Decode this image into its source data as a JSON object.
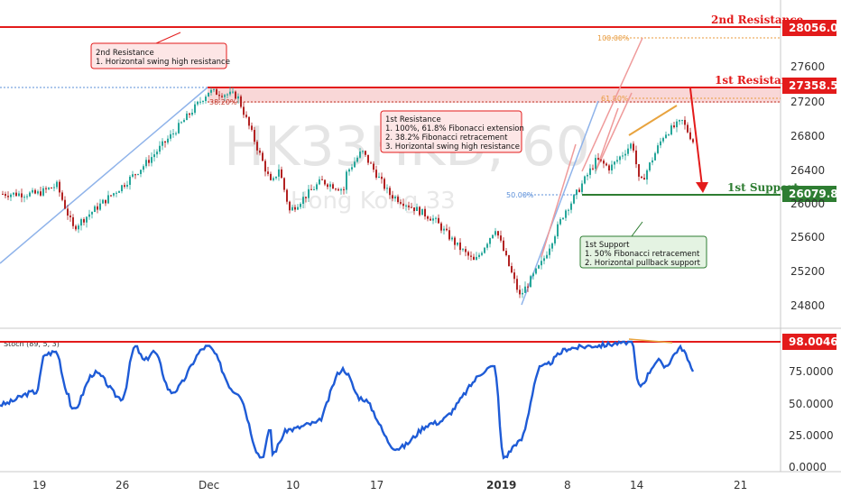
{
  "watermark": {
    "symbol": "HK33HKD, 60",
    "name": "Hong Kong 33"
  },
  "colors": {
    "up": "#26a69a",
    "down": "#b22222",
    "resistance": "#e31b1b",
    "support": "#2e7d32",
    "stoch": "#1e5bd6",
    "zone": "#f7c9c9"
  },
  "annotations": {
    "res2_title": "2nd Resistance",
    "res1_title": "1st Resistance",
    "sup1_title": "1st Support",
    "res2_box": [
      "2nd Resistance",
      "1. Horizontal swing high resistance"
    ],
    "res1_box": [
      "1st Resistance",
      "1. 100%, 61.8% Fibonacci extension",
      "2. 38.2% Fibonacci retracement",
      "3. Horizontal swing high resistance"
    ],
    "sup1_box": [
      "1st Support",
      "1. 50% Fibonacci retracement",
      "2. Horizontal pullback support"
    ],
    "fib_100": "100.00%",
    "fib_618": "61.80%",
    "fib_50": "50.00%",
    "fib_382": "38.20%"
  },
  "chart_data": [
    {
      "type": "line",
      "title": "HK33HKD, 60",
      "y_ticks": [
        24800,
        25200,
        25600,
        26000,
        26400,
        26800,
        27200,
        27600
      ],
      "ylim": [
        24560,
        28160
      ],
      "x_tick_labels": [
        "19",
        "26",
        "Dec",
        "10",
        "17",
        "2019",
        "8",
        "14",
        "21"
      ],
      "levels": [
        {
          "name": "2nd Resistance",
          "value": 28056.0,
          "label": "28056.0"
        },
        {
          "name": "1st Resistance",
          "value": 27358.5,
          "label": "27358.5"
        },
        {
          "name": "1st Support",
          "value": 26079.8,
          "label": "26079.8"
        }
      ],
      "series": [
        {
          "path": [
            [
              "19",
              26100
            ],
            [
              "21",
              26200
            ],
            [
              "23",
              25700
            ],
            [
              "26",
              26200
            ],
            [
              "28",
              26450
            ],
            [
              "30",
              26800
            ],
            [
              "Dec",
              27300
            ],
            [
              "Dec 3",
              27250
            ],
            [
              "Dec 5",
              26200
            ],
            [
              "Dec 7",
              26400
            ],
            [
              "10",
              25900
            ],
            [
              "Dec 12",
              26250
            ],
            [
              "Dec 14",
              26150
            ],
            [
              "17",
              26300
            ],
            [
              "Dec 18",
              26600
            ],
            [
              "Dec 21",
              26100
            ],
            [
              "Dec 24",
              25800
            ],
            [
              "Dec 27",
              25500
            ],
            [
              "Dec 28",
              25300
            ],
            [
              "2019",
              25700
            ],
            [
              "Jan 3",
              24900
            ],
            [
              "Jan 4",
              25300
            ],
            [
              "Jan 7",
              25900
            ],
            [
              "8",
              26000
            ],
            [
              "Jan 10",
              26500
            ],
            [
              "Jan 11",
              26400
            ],
            [
              "14",
              26700
            ],
            [
              "Jan 15",
              26200
            ],
            [
              "Jan 17",
              26800
            ],
            [
              "Jan 18",
              26950
            ],
            [
              "Jan 19",
              26700
            ]
          ]
        }
      ]
    },
    {
      "type": "line",
      "title": "Stoch (89, 5, 3)",
      "y_ticks": [
        0.0,
        25.0,
        50.0,
        75.0,
        100.0
      ],
      "y_tick_labels": [
        "0.0000",
        "25.0000",
        "50.0000",
        "75.0000"
      ],
      "ylim": [
        0,
        100
      ],
      "highlight": {
        "value": 98.0046,
        "label": "98.0046"
      },
      "series": [
        {
          "name": "Stoch (89, 5, 3)",
          "path": [
            [
              "19",
              60
            ],
            [
              "20",
              90
            ],
            [
              "21",
              92
            ],
            [
              "22",
              60
            ],
            [
              "23",
              45
            ],
            [
              "25",
              75
            ],
            [
              "26",
              55
            ],
            [
              "27",
              96
            ],
            [
              "28",
              85
            ],
            [
              "29",
              92
            ],
            [
              "30",
              60
            ],
            [
              "Dec",
              96
            ],
            [
              "Dec 3",
              60
            ],
            [
              "Dec 4",
              8
            ],
            [
              "Dec 5",
              30
            ],
            [
              "10",
              30
            ],
            [
              "Dec 11",
              10
            ],
            [
              "Dec 13",
              35
            ],
            [
              "17",
              78
            ],
            [
              "Dec 18",
              55
            ],
            [
              "Dec 20",
              15
            ],
            [
              "Dec 24",
              35
            ],
            [
              "2019",
              80
            ],
            [
              "Jan 2",
              8
            ],
            [
              "Jan 3",
              20
            ],
            [
              "Jan 4",
              80
            ],
            [
              "8",
              95
            ],
            [
              "Jan 10",
              97
            ],
            [
              "14",
              100
            ],
            [
              "Jan 15",
              65
            ],
            [
              "Jan 16",
              85
            ],
            [
              "Jan 17",
              80
            ],
            [
              "Jan 18",
              95
            ],
            [
              "Jan 19",
              78
            ]
          ]
        }
      ]
    }
  ]
}
